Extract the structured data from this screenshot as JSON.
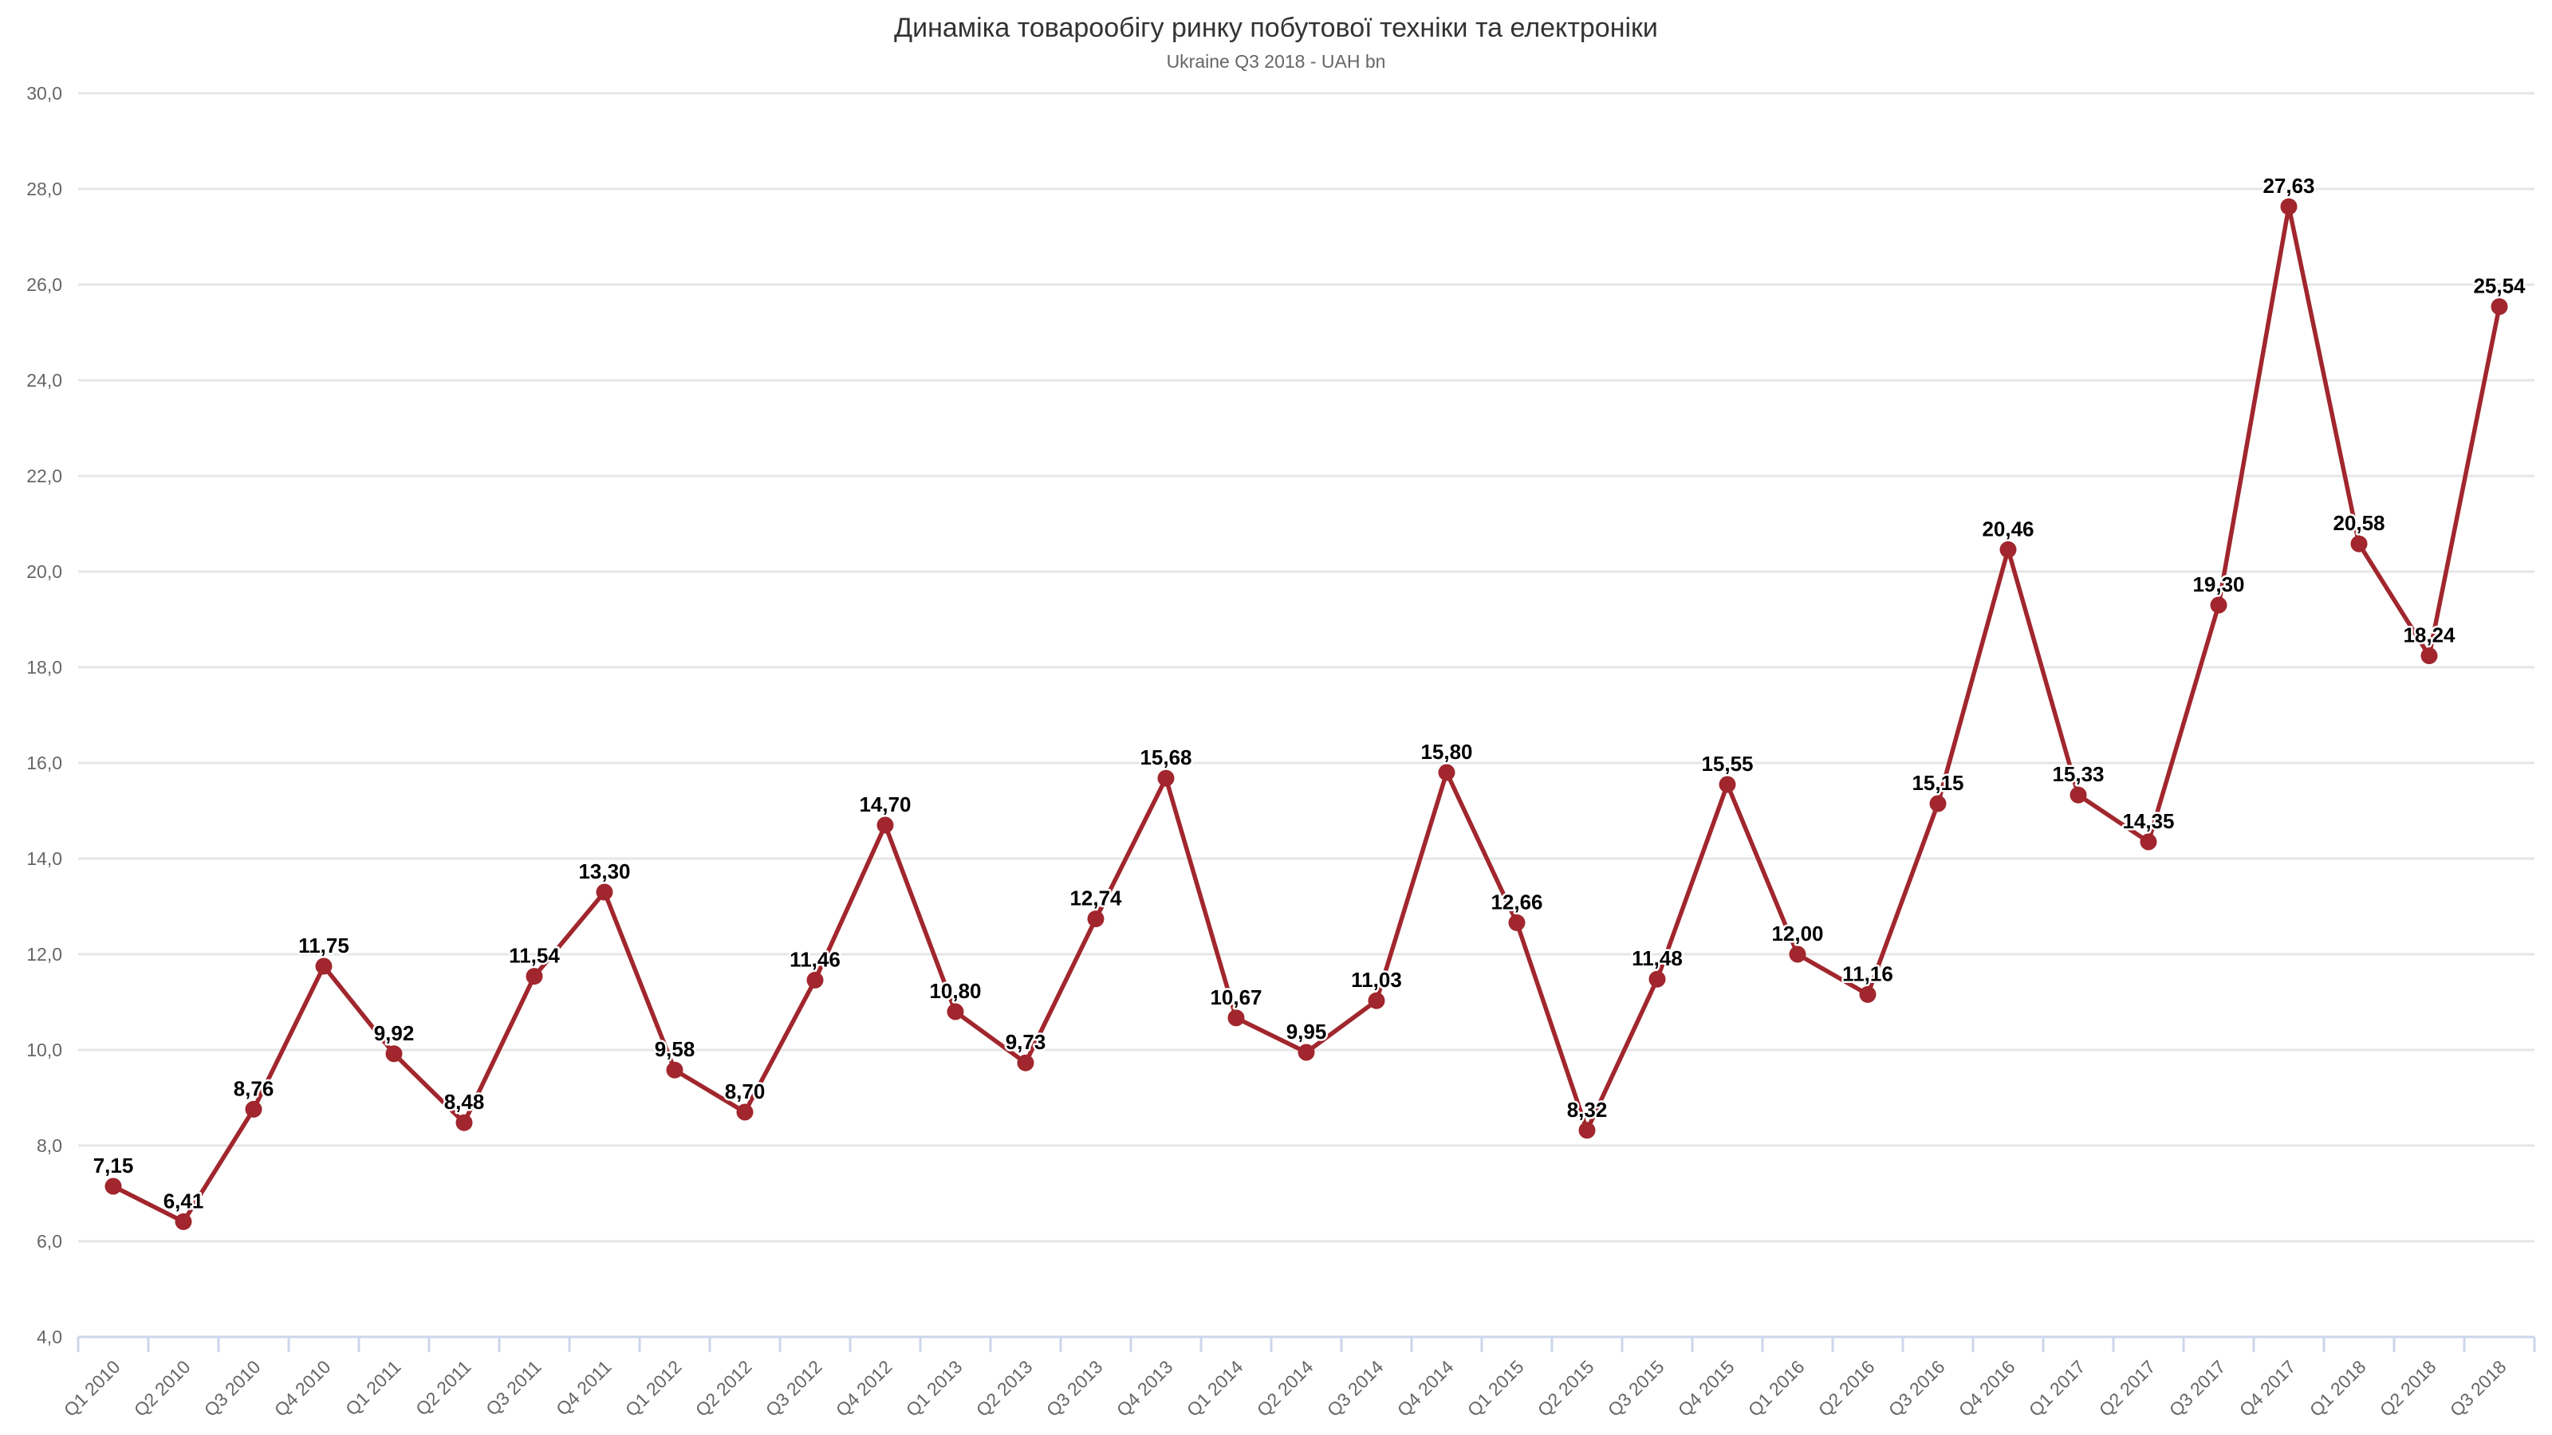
{
  "header": {
    "title": "Динаміка товарообігу ринку побутової техніки та електроніки",
    "subtitle": "Ukraine Q3 2018 - UAH bn"
  },
  "chart_data": {
    "type": "line",
    "title": "Динаміка товарообігу ринку побутової техніки та електроніки",
    "subtitle": "Ukraine Q3 2018 - UAH bn",
    "categories": [
      "Q1 2010",
      "Q2 2010",
      "Q3 2010",
      "Q4 2010",
      "Q1 2011",
      "Q2 2011",
      "Q3 2011",
      "Q4 2011",
      "Q1 2012",
      "Q2 2012",
      "Q3 2012",
      "Q4 2012",
      "Q1 2013",
      "Q2 2013",
      "Q3 2013",
      "Q4 2013",
      "Q1 2014",
      "Q2 2014",
      "Q3 2014",
      "Q4 2014",
      "Q1 2015",
      "Q2 2015",
      "Q3 2015",
      "Q4 2015",
      "Q1 2016",
      "Q2 2016",
      "Q3 2016",
      "Q4 2016",
      "Q1 2017",
      "Q2 2017",
      "Q3 2017",
      "Q4 2017",
      "Q1 2018",
      "Q2 2018",
      "Q3 2018"
    ],
    "values": [
      7.15,
      6.41,
      8.76,
      11.75,
      9.92,
      8.48,
      11.54,
      13.3,
      9.58,
      8.7,
      11.46,
      14.7,
      10.8,
      9.73,
      12.74,
      15.68,
      10.67,
      9.95,
      11.03,
      15.8,
      12.66,
      8.32,
      11.48,
      15.55,
      12.0,
      11.16,
      15.15,
      20.46,
      15.33,
      14.35,
      19.3,
      27.63,
      20.58,
      18.24,
      25.54
    ],
    "point_labels": [
      "7,15",
      "6,41",
      "8,76",
      "11,75",
      "9,92",
      "8,48",
      "11,54",
      "13,30",
      "9,58",
      "8,70",
      "11,46",
      "14,70",
      "10,80",
      "9,73",
      "12,74",
      "15,68",
      "10,67",
      "9,95",
      "11,03",
      "15,80",
      "12,66",
      "8,32",
      "11,48",
      "15,55",
      "12,00",
      "11,16",
      "15,15",
      "20,46",
      "15,33",
      "14,35",
      "19,30",
      "27,63",
      "20,58",
      "18,24",
      "25,54"
    ],
    "xlabel": "",
    "ylabel": "",
    "y_axis": {
      "min": 4,
      "max": 30,
      "step": 2,
      "tick_labels_top_to_bottom": [
        "30,0",
        "28,0",
        "26,0",
        "24,0",
        "22,0",
        "20,0",
        "18,0",
        "16,0",
        "14,0",
        "12,0",
        "10,0",
        "8,0",
        "6,0",
        "4,0"
      ]
    },
    "grid": true,
    "legend": false,
    "colors": {
      "series": "#A1262D",
      "grid_line": "#E6E6E6",
      "axis_line": "#CCD6EB",
      "axis_text": "#666666",
      "data_label": "#000000",
      "title_text": "#333333",
      "subtitle_text": "#666666",
      "background": "#FFFFFF"
    }
  }
}
